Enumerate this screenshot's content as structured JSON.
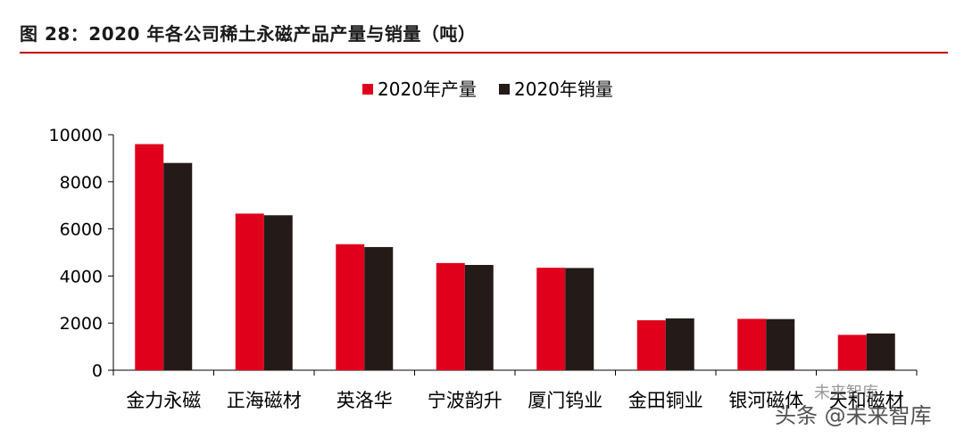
{
  "title": "图 28：2020 年各公司稀土永磁产品产量与销量（吨）",
  "watermark": "头条 @未来智库",
  "watermark_small": "未来智库",
  "colors": {
    "production": "#e0001b",
    "sales": "#241a18",
    "rule": "#c00000"
  },
  "chart_data": {
    "type": "bar",
    "categories": [
      "金力永磁",
      "正海磁材",
      "英洛华",
      "宁波韵升",
      "厦门钨业",
      "金田铜业",
      "银河磁体",
      "天和磁材"
    ],
    "series": [
      {
        "name": "2020年产量",
        "values": [
          9600,
          6650,
          5350,
          4550,
          4350,
          2120,
          2180,
          1500
        ]
      },
      {
        "name": "2020年销量",
        "values": [
          8800,
          6580,
          5230,
          4470,
          4340,
          2200,
          2170,
          1560
        ]
      }
    ],
    "yticks": [
      0,
      2000,
      4000,
      6000,
      8000,
      10000
    ],
    "ylim": [
      0,
      10000
    ],
    "legend": "top-center",
    "grid": false
  }
}
